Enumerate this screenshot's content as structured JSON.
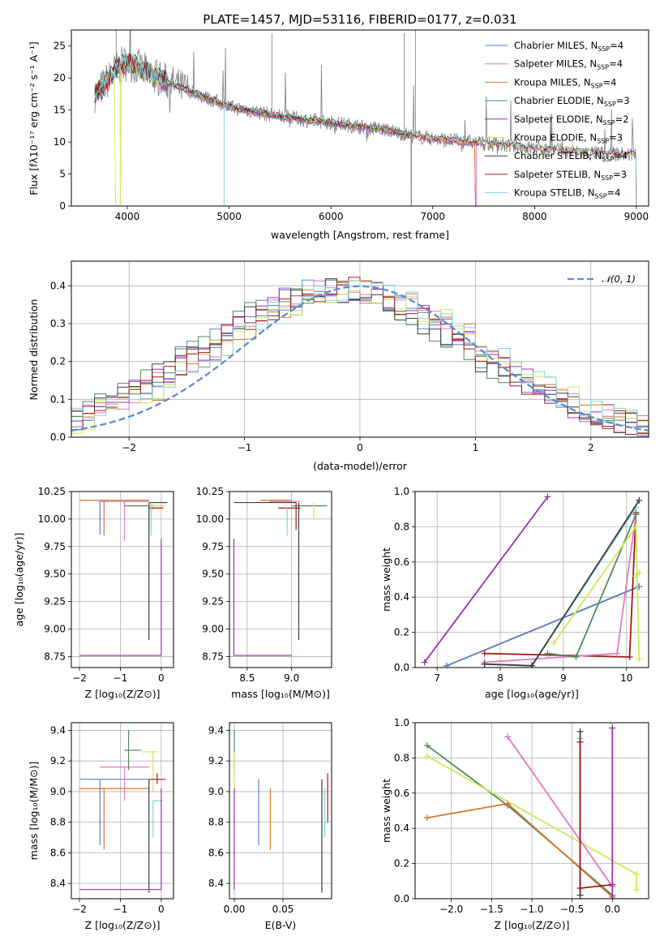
{
  "colors": {
    "Chabrier MILES": "#5b7fcf",
    "Salpeter MILES": "#e377c2",
    "Kroupa MILES": "#d2772c",
    "Chabrier ELODIE": "#4f8a5b",
    "Salpeter ELODIE": "#9a2fb3",
    "Kroupa ELODIE": "#cde95a",
    "Chabrier STELIB": "#3d3d3d",
    "Salpeter STELIB": "#a11a1a",
    "Kroupa STELIB": "#7fd3df",
    "data": "#808080",
    "normal": "#5b8bd6"
  },
  "chart_data": [
    {
      "id": "spectrum",
      "type": "line",
      "title": "PLATE=1457, MJD=53116, FIBERID=0177, z=0.031",
      "xlabel": "wavelength [Angstrom, rest frame]",
      "ylabel": "Flux [fλ10⁻¹⁷ erg cm⁻² s⁻¹ A⁻¹]",
      "xlim": [
        3450,
        9120
      ],
      "ylim": [
        0,
        27.5
      ],
      "xticks": [
        4000,
        5000,
        6000,
        7000,
        8000,
        9000
      ],
      "yticks": [
        0,
        5,
        10,
        15,
        20,
        25
      ],
      "legend_position": "upper right",
      "legend": [
        {
          "name": "Chabrier MILES",
          "nssp": "4"
        },
        {
          "name": "Salpeter MILES",
          "nssp": "4"
        },
        {
          "name": "Kroupa MILES",
          "nssp": "4"
        },
        {
          "name": "Chabrier ELODIE",
          "nssp": "3"
        },
        {
          "name": "Salpeter ELODIE",
          "nssp": "2"
        },
        {
          "name": "Kroupa ELODIE",
          "nssp": "3"
        },
        {
          "name": "Chabrier STELIB",
          "nssp": "4"
        },
        {
          "name": "Salpeter STELIB",
          "nssp": "3"
        },
        {
          "name": "Kroupa STELIB",
          "nssp": "4"
        }
      ],
      "data_envelope": {
        "x": [
          3700,
          3900,
          4000,
          4300,
          4600,
          5000,
          5500,
          6000,
          6500,
          6800,
          7000,
          7500,
          8000,
          8500,
          9000
        ],
        "y": [
          17.5,
          21.5,
          22.5,
          20,
          18,
          15.5,
          14,
          13,
          12,
          11,
          10.5,
          9.8,
          9,
          8.3,
          8
        ]
      }
    },
    {
      "id": "residuals",
      "type": "line",
      "xlabel": "(data-model)/error",
      "ylabel": "Normed distribution",
      "xlim": [
        -2.5,
        2.5
      ],
      "ylim": [
        0,
        0.465
      ],
      "xticks": [
        -2,
        -1,
        0,
        1,
        2
      ],
      "yticks": [
        0.0,
        0.1,
        0.2,
        0.3,
        0.4
      ],
      "legend_position": "upper right",
      "normal_label": "𝒩(0, 1)"
    },
    {
      "id": "age-Z",
      "type": "scatter",
      "xlabel": "Z [log₁₀(Z/Z⊙)]",
      "ylabel": "age  [log₁₀(age/yr)]",
      "xlim": [
        -2.2,
        0.3
      ],
      "ylim": [
        8.65,
        10.25
      ],
      "xticks": [
        -2,
        -1,
        0
      ],
      "yticks": [
        8.75,
        9.0,
        9.25,
        9.5,
        9.75,
        10.0,
        10.25
      ],
      "errorbars": [
        {
          "color": "Kroupa MILES",
          "x": -2.0,
          "x0": -2.0,
          "x1": -0.3,
          "y": 10.17,
          "y0": 10.17,
          "y1": 10.17
        },
        {
          "color": "Kroupa MILES",
          "x": -1.4,
          "x0": -1.4,
          "x1": -1.4,
          "y": 10.1,
          "y0": 9.85,
          "y1": 10.17
        },
        {
          "color": "Chabrier MILES",
          "x": -1.5,
          "x0": -1.5,
          "x1": -1.5,
          "y": 10.05,
          "y0": 9.86,
          "y1": 10.17
        },
        {
          "color": "Salpeter MILES",
          "x": -0.9,
          "x0": -1.5,
          "x1": -0.3,
          "y": 10.16,
          "y0": 9.8,
          "y1": 10.16
        },
        {
          "color": "Chabrier ELODIE",
          "x": -0.8,
          "x0": -0.9,
          "x1": -0.2,
          "y": 10.12,
          "y0": 10.12,
          "y1": 10.12
        },
        {
          "color": "Kroupa ELODIE",
          "x": -0.2,
          "x0": -0.3,
          "x1": 0.1,
          "y": 10.12,
          "y0": 10.08,
          "y1": 10.14
        },
        {
          "color": "Chabrier STELIB",
          "x": -0.3,
          "x0": -0.3,
          "x1": 0.15,
          "y": 10.15,
          "y0": 8.9,
          "y1": 10.15
        },
        {
          "color": "Salpeter STELIB",
          "x": -0.1,
          "x0": -0.3,
          "x1": 0.05,
          "y": 10.1,
          "y0": 10.1,
          "y1": 10.1
        },
        {
          "color": "Kroupa STELIB",
          "x": -0.25,
          "x0": -0.25,
          "x1": -0.25,
          "y": 10.1,
          "y0": 9.85,
          "y1": 10.15
        },
        {
          "color": "Salpeter ELODIE",
          "x": -2.0,
          "x0": -2.0,
          "x1": 0.0,
          "y": 8.76,
          "y0": 8.76,
          "y1": 8.76
        },
        {
          "color": "Salpeter ELODIE",
          "x": 0.0,
          "x0": 0.0,
          "x1": 0.0,
          "y": 9.5,
          "y0": 8.76,
          "y1": 9.82
        }
      ]
    },
    {
      "id": "age-mass",
      "type": "scatter",
      "xlabel": "mass [log₁₀(M/M⊙)]",
      "ylabel": "",
      "xlim": [
        8.3,
        9.45
      ],
      "ylim": [
        8.65,
        10.25
      ],
      "xticks": [
        8.5,
        9.0
      ],
      "yticks": [
        8.75,
        9.0,
        9.25,
        9.5,
        9.75,
        10.0,
        10.25
      ],
      "errorbars": [
        {
          "color": "Chabrier STELIB",
          "x": 8.35,
          "x0": 8.35,
          "x1": 9.05,
          "y": 10.15,
          "y0": 10.15,
          "y1": 10.15
        },
        {
          "color": "Kroupa MILES",
          "x": 8.65,
          "x0": 8.65,
          "x1": 9.0,
          "y": 10.17,
          "y0": 10.17,
          "y1": 10.17
        },
        {
          "color": "Salpeter MILES",
          "x": 8.75,
          "x0": 8.75,
          "x1": 9.1,
          "y": 10.16,
          "y0": 10.16,
          "y1": 10.16
        },
        {
          "color": "Chabrier ELODIE",
          "x": 9.1,
          "x0": 9.0,
          "x1": 9.4,
          "y": 10.12,
          "y0": 10.12,
          "y1": 10.12
        },
        {
          "color": "Kroupa ELODIE",
          "x": 9.25,
          "x0": 9.25,
          "x1": 9.25,
          "y": 10.1,
          "y0": 10.0,
          "y1": 10.15
        },
        {
          "color": "Salpeter STELIB",
          "x": 8.85,
          "x0": 8.85,
          "x1": 9.1,
          "y": 10.1,
          "y0": 10.1,
          "y1": 10.1
        },
        {
          "color": "Kroupa STELIB",
          "x": 8.95,
          "x0": 8.95,
          "x1": 8.95,
          "y": 10.0,
          "y0": 9.85,
          "y1": 10.1
        },
        {
          "color": "Chabrier STELIB",
          "x": 9.08,
          "x0": 9.08,
          "x1": 9.08,
          "y": 10.0,
          "y0": 8.9,
          "y1": 10.15
        },
        {
          "color": "Salpeter STELIB",
          "x": 9.05,
          "x0": 9.05,
          "x1": 9.05,
          "y": 10.0,
          "y0": 9.9,
          "y1": 10.15
        },
        {
          "color": "Salpeter ELODIE",
          "x": 8.35,
          "x0": 8.35,
          "x1": 9.0,
          "y": 8.76,
          "y0": 8.76,
          "y1": 8.76
        },
        {
          "color": "Salpeter ELODIE",
          "x": 8.35,
          "x0": 8.35,
          "x1": 8.35,
          "y": 9.3,
          "y0": 8.76,
          "y1": 9.82
        }
      ]
    },
    {
      "id": "weight-age",
      "type": "line",
      "xlabel": "age  [log₁₀(age/yr)]",
      "ylabel": "mass weight",
      "xlim": [
        6.65,
        10.35
      ],
      "ylim": [
        0,
        1.0
      ],
      "xticks": [
        7,
        8,
        9,
        10
      ],
      "yticks": [
        0.0,
        0.2,
        0.4,
        0.6,
        0.8,
        1.0
      ],
      "series": [
        {
          "color": "Salpeter ELODIE",
          "x": [
            6.8,
            8.75
          ],
          "y": [
            0.03,
            0.97
          ]
        },
        {
          "color": "Kroupa MILES",
          "x": [
            7.15,
            10.2
          ],
          "y": [
            0.01,
            0.46
          ]
        },
        {
          "color": "Chabrier MILES",
          "x": [
            7.15,
            10.2
          ],
          "y": [
            0.01,
            0.46
          ]
        },
        {
          "color": "Salpeter STELIB",
          "x": [
            7.75,
            10.05,
            10.15
          ],
          "y": [
            0.08,
            0.06,
            0.88
          ]
        },
        {
          "color": "Salpeter MILES",
          "x": [
            7.75,
            9.85,
            10.15
          ],
          "y": [
            0.03,
            0.08,
            0.87
          ]
        },
        {
          "color": "Chabrier ELODIE",
          "x": [
            8.75,
            9.2,
            10.15
          ],
          "y": [
            0.08,
            0.06,
            0.87
          ]
        },
        {
          "color": "Kroupa ELODIE",
          "x": [
            8.85,
            10.15,
            10.2
          ],
          "y": [
            0.14,
            0.8,
            0.05
          ]
        },
        {
          "color": "Kroupa STELIB",
          "x": [
            7.75,
            8.5,
            10.15
          ],
          "y": [
            0.02,
            0.01,
            0.91
          ]
        },
        {
          "color": "Chabrier STELIB",
          "x": [
            7.75,
            8.5,
            10.2
          ],
          "y": [
            0.02,
            0.01,
            0.95
          ]
        },
        {
          "color": "Kroupa ELODIE",
          "x": [
            10.15,
            10.2
          ],
          "y": [
            0.52,
            0.54
          ]
        }
      ]
    },
    {
      "id": "mass-Z",
      "type": "scatter",
      "xlabel": "Z [log₁₀(Z/Z⊙)]",
      "ylabel": "mass [log₁₀(M/M⊙)]",
      "xlim": [
        -2.2,
        0.3
      ],
      "ylim": [
        8.3,
        9.45
      ],
      "xticks": [
        -2,
        -1,
        0
      ],
      "yticks": [
        8.4,
        8.6,
        8.8,
        9.0,
        9.2,
        9.4
      ],
      "errorbars": [
        {
          "color": "Chabrier MILES",
          "x": -2.0,
          "x0": -2.0,
          "x1": -0.3,
          "y": 9.08,
          "y0": 9.08,
          "y1": 9.08
        },
        {
          "color": "Chabrier MILES",
          "x": -1.5,
          "x0": -1.5,
          "x1": -1.5,
          "y": 8.9,
          "y0": 8.65,
          "y1": 9.08
        },
        {
          "color": "Kroupa MILES",
          "x": -2.0,
          "x0": -2.0,
          "x1": -0.3,
          "y": 9.02,
          "y0": 9.02,
          "y1": 9.02
        },
        {
          "color": "Kroupa MILES",
          "x": -1.4,
          "x0": -1.4,
          "x1": -1.4,
          "y": 8.8,
          "y0": 8.62,
          "y1": 9.02
        },
        {
          "color": "Salpeter MILES",
          "x": -1.5,
          "x0": -1.5,
          "x1": -0.3,
          "y": 9.16,
          "y0": 9.16,
          "y1": 9.16
        },
        {
          "color": "Salpeter MILES",
          "x": -0.9,
          "x0": -0.9,
          "x1": -0.9,
          "y": 9.0,
          "y0": 8.94,
          "y1": 9.16
        },
        {
          "color": "Chabrier ELODIE",
          "x": -0.8,
          "x0": -0.9,
          "x1": -0.5,
          "y": 9.27,
          "y0": 9.27,
          "y1": 9.27
        },
        {
          "color": "Chabrier ELODIE",
          "x": -0.8,
          "x0": -0.8,
          "x1": -0.8,
          "y": 9.3,
          "y0": 9.14,
          "y1": 9.4
        },
        {
          "color": "Kroupa ELODIE",
          "x": -0.2,
          "x0": -0.5,
          "x1": -0.1,
          "y": 9.26,
          "y0": 9.26,
          "y1": 9.26
        },
        {
          "color": "Kroupa ELODIE",
          "x": -0.2,
          "x0": -0.2,
          "x1": -0.2,
          "y": 9.1,
          "y0": 9.0,
          "y1": 9.26
        },
        {
          "color": "Salpeter STELIB",
          "x": -0.1,
          "x0": -0.3,
          "x1": 0.1,
          "y": 9.08,
          "y0": 9.08,
          "y1": 9.08
        },
        {
          "color": "Salpeter STELIB",
          "x": -0.1,
          "x0": -0.1,
          "x1": -0.1,
          "y": 9.08,
          "y0": 9.05,
          "y1": 9.12
        },
        {
          "color": "Chabrier STELIB",
          "x": -0.3,
          "x0": -0.3,
          "x1": -0.3,
          "y": 9.0,
          "y0": 8.34,
          "y1": 9.08
        },
        {
          "color": "Kroupa STELIB",
          "x": -0.2,
          "x0": -0.2,
          "x1": 0.05,
          "y": 8.94,
          "y0": 8.94,
          "y1": 8.94
        },
        {
          "color": "Kroupa STELIB",
          "x": -0.2,
          "x0": -0.2,
          "x1": -0.2,
          "y": 8.8,
          "y0": 8.7,
          "y1": 8.94
        },
        {
          "color": "Salpeter ELODIE",
          "x": -2.0,
          "x0": -2.0,
          "x1": 0.0,
          "y": 8.36,
          "y0": 8.36,
          "y1": 8.36
        },
        {
          "color": "Salpeter ELODIE",
          "x": 0.0,
          "x0": 0.0,
          "x1": 0.0,
          "y": 8.7,
          "y0": 8.36,
          "y1": 9.02
        }
      ]
    },
    {
      "id": "mass-ebv",
      "type": "scatter",
      "xlabel": "E(B-V)",
      "ylabel": "",
      "xlim": [
        -0.005,
        0.1
      ],
      "ylim": [
        8.3,
        9.45
      ],
      "xticks": [
        0.0,
        0.05
      ],
      "yticks": [
        8.4,
        8.6,
        8.8,
        9.0,
        9.2,
        9.4
      ],
      "errorbars": [
        {
          "color": "Chabrier ELODIE",
          "x": 0.0,
          "x0": 0.0,
          "x1": 0.0,
          "y": 9.3,
          "y0": 9.14,
          "y1": 9.4
        },
        {
          "color": "Kroupa ELODIE",
          "x": 0.0,
          "x0": 0.0,
          "x1": 0.0,
          "y": 9.2,
          "y0": 9.0,
          "y1": 9.26
        },
        {
          "color": "Salpeter ELODIE",
          "x": 0.0,
          "x0": 0.0,
          "x1": 0.0,
          "y": 8.7,
          "y0": 8.36,
          "y1": 9.02
        },
        {
          "color": "Chabrier MILES",
          "x": 0.025,
          "x0": 0.025,
          "x1": 0.025,
          "y": 8.9,
          "y0": 8.65,
          "y1": 9.08
        },
        {
          "color": "Kroupa MILES",
          "x": 0.037,
          "x0": 0.037,
          "x1": 0.037,
          "y": 8.8,
          "y0": 8.62,
          "y1": 9.02
        },
        {
          "color": "Chabrier STELIB",
          "x": 0.09,
          "x0": 0.09,
          "x1": 0.09,
          "y": 8.7,
          "y0": 8.34,
          "y1": 9.08
        },
        {
          "color": "Kroupa STELIB",
          "x": 0.093,
          "x0": 0.093,
          "x1": 0.093,
          "y": 8.8,
          "y0": 8.7,
          "y1": 9.02
        },
        {
          "color": "Salpeter STELIB",
          "x": 0.096,
          "x0": 0.096,
          "x1": 0.096,
          "y": 9.0,
          "y0": 8.8,
          "y1": 9.12
        }
      ]
    },
    {
      "id": "weight-Z",
      "type": "line",
      "xlabel": "Z [log₁₀(Z/Z⊙)]",
      "ylabel": "mass weight",
      "xlim": [
        -2.45,
        0.45
      ],
      "ylim": [
        0,
        1.0
      ],
      "xticks": [
        -2.0,
        -1.5,
        -1.0,
        -0.5,
        0.0
      ],
      "yticks": [
        0.0,
        0.2,
        0.4,
        0.6,
        0.8,
        1.0
      ],
      "series": [
        {
          "color": "Chabrier ELODIE",
          "x": [
            -2.3,
            -1.3,
            0.0
          ],
          "y": [
            0.87,
            0.53,
            0.02
          ]
        },
        {
          "color": "Kroupa ELODIE",
          "x": [
            -2.3,
            0.3,
            0.3
          ],
          "y": [
            0.81,
            0.14,
            0.05
          ]
        },
        {
          "color": "Kroupa MILES",
          "x": [
            -2.3,
            -1.3,
            0.0
          ],
          "y": [
            0.46,
            0.54,
            0.01
          ]
        },
        {
          "color": "Salpeter MILES",
          "x": [
            -1.3,
            0.0
          ],
          "y": [
            0.92,
            0.07
          ]
        },
        {
          "color": "Kroupa STELIB",
          "x": [
            -0.4,
            -0.4
          ],
          "y": [
            0.0,
            0.91
          ]
        },
        {
          "color": "Chabrier STELIB",
          "x": [
            -0.4,
            -0.4
          ],
          "y": [
            0.02,
            0.95
          ]
        },
        {
          "color": "Salpeter STELIB",
          "x": [
            -0.4,
            -0.4,
            0.0
          ],
          "y": [
            0.89,
            0.06,
            0.08
          ]
        },
        {
          "color": "Salpeter ELODIE",
          "x": [
            0.0,
            0.0
          ],
          "y": [
            0.0,
            0.97
          ]
        }
      ]
    }
  ]
}
